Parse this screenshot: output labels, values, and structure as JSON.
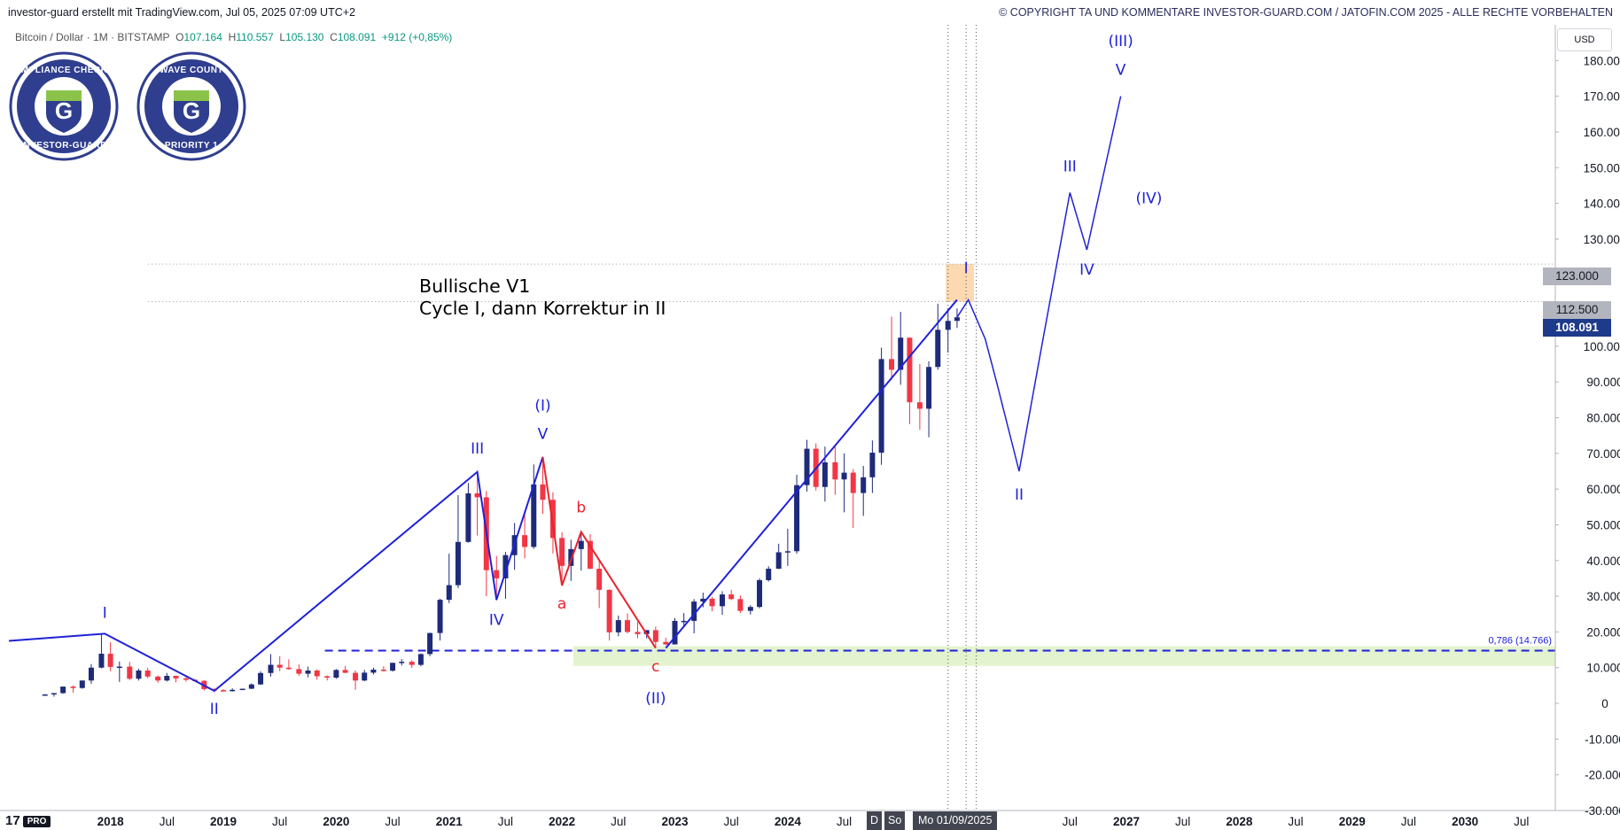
{
  "header": {
    "left": "investor-guard erstellt mit TradingView.com, Jul 05, 2025 07:09 UTC+2",
    "right": "© COPYRIGHT TA UND KOMMENTARE INVESTOR-GUARD.COM / JATOFIN.COM 2025 - ALLE RECHTE VORBEHALTEN"
  },
  "symbol": {
    "name": "Bitcoin / Dollar · 1M · BITSTAMP",
    "open_label": "O",
    "open": "107.164",
    "high_label": "H",
    "high": "110.557",
    "low_label": "L",
    "low": "105.130",
    "close_label": "C",
    "close": "108.091",
    "change": "+912 (+0,85%)"
  },
  "badges": {
    "left": {
      "top_text": "COMPLIANCE CHECKED",
      "bottom_text": "INVESTOR-GUARD",
      "letter": "G"
    },
    "right": {
      "top_text": "WAVE COUNT",
      "bottom_text": "PRIORITY 1",
      "letter": "G"
    }
  },
  "annotation": {
    "line1": "Bullische V1",
    "line2": "Cycle I, dann Korrektur in II"
  },
  "currency_button": "USD",
  "price_labels": {
    "level_123": "123.000",
    "level_1125": "112.500",
    "last": "108.091"
  },
  "fib_label": "0,786 (14.766)",
  "highlighted_date": "Mo 01/09/2025",
  "date_stub_1": "D",
  "date_stub_2": "So",
  "logo": {
    "mark": "17",
    "badge": "PRO"
  },
  "colors": {
    "up": "#1e2b7a",
    "down": "#f23645",
    "wave_blue": "#1f22d8",
    "wave_red": "#e8232f",
    "support_zone": "#e3f3cf",
    "target_box": "#fcd9b0",
    "last_price_bg": "#1e3a8a"
  },
  "chart_data": {
    "type": "candlestick",
    "ylim": [
      -30000,
      190000
    ],
    "xlim": [
      2017.1,
      2030.8
    ],
    "y_ticks": [
      {
        "v": 180000,
        "t": "180.000"
      },
      {
        "v": 170000,
        "t": "170.000"
      },
      {
        "v": 160000,
        "t": "160.000"
      },
      {
        "v": 150000,
        "t": "150.000"
      },
      {
        "v": 140000,
        "t": "140.000"
      },
      {
        "v": 130000,
        "t": "130.000"
      },
      {
        "v": 100000,
        "t": "100.000"
      },
      {
        "v": 90000,
        "t": "90.000"
      },
      {
        "v": 80000,
        "t": "80.000"
      },
      {
        "v": 70000,
        "t": "70.000"
      },
      {
        "v": 60000,
        "t": "60.000"
      },
      {
        "v": 50000,
        "t": "50.000"
      },
      {
        "v": 40000,
        "t": "40.000"
      },
      {
        "v": 30000,
        "t": "30.000"
      },
      {
        "v": 20000,
        "t": "20.000"
      },
      {
        "v": 10000,
        "t": "10.000"
      },
      {
        "v": 0,
        "t": "0"
      },
      {
        "v": -10000,
        "t": "-10.000"
      },
      {
        "v": -20000,
        "t": "-20.000"
      },
      {
        "v": -30000,
        "t": "-30.000"
      }
    ],
    "x_ticks": [
      {
        "v": 2018.0,
        "t": "2018"
      },
      {
        "v": 2018.5,
        "t": "Jul"
      },
      {
        "v": 2019.0,
        "t": "2019"
      },
      {
        "v": 2019.5,
        "t": "Jul"
      },
      {
        "v": 2020.0,
        "t": "2020"
      },
      {
        "v": 2020.5,
        "t": "Jul"
      },
      {
        "v": 2021.0,
        "t": "2021"
      },
      {
        "v": 2021.5,
        "t": "Jul"
      },
      {
        "v": 2022.0,
        "t": "2022"
      },
      {
        "v": 2022.5,
        "t": "Jul"
      },
      {
        "v": 2023.0,
        "t": "2023"
      },
      {
        "v": 2023.5,
        "t": "Jul"
      },
      {
        "v": 2024.0,
        "t": "2024"
      },
      {
        "v": 2024.5,
        "t": "Jul"
      },
      {
        "v": 2026.5,
        "t": "Jul"
      },
      {
        "v": 2027.0,
        "t": "2027"
      },
      {
        "v": 2027.5,
        "t": "Jul"
      },
      {
        "v": 2028.0,
        "t": "2028"
      },
      {
        "v": 2028.5,
        "t": "Jul"
      },
      {
        "v": 2029.0,
        "t": "2029"
      },
      {
        "v": 2029.5,
        "t": "Jul"
      },
      {
        "v": 2030.0,
        "t": "2030"
      },
      {
        "v": 2030.5,
        "t": "Jul"
      }
    ],
    "candles": [
      [
        2017.42,
        2400,
        2600,
        2200,
        2500
      ],
      [
        2017.5,
        2500,
        2900,
        1900,
        2870
      ],
      [
        2017.58,
        2870,
        4700,
        2700,
        4700
      ],
      [
        2017.67,
        4700,
        5000,
        3000,
        4300
      ],
      [
        2017.75,
        4300,
        6400,
        4100,
        6400
      ],
      [
        2017.83,
        6400,
        11000,
        5500,
        10000
      ],
      [
        2017.92,
        10000,
        19600,
        9800,
        13900
      ],
      [
        2018.0,
        13900,
        17100,
        9000,
        10200
      ],
      [
        2018.08,
        10200,
        11700,
        6000,
        10300
      ],
      [
        2018.17,
        10300,
        11600,
        6500,
        6900
      ],
      [
        2018.25,
        6900,
        9700,
        6400,
        9200
      ],
      [
        2018.33,
        9200,
        10000,
        7000,
        7500
      ],
      [
        2018.42,
        7500,
        7800,
        5800,
        6400
      ],
      [
        2018.5,
        6400,
        8500,
        6100,
        7700
      ],
      [
        2018.58,
        7700,
        7800,
        5900,
        7000
      ],
      [
        2018.67,
        7000,
        7400,
        6100,
        6600
      ],
      [
        2018.75,
        6600,
        6800,
        6100,
        6300
      ],
      [
        2018.83,
        6300,
        6500,
        3600,
        4000
      ],
      [
        2018.92,
        4000,
        4300,
        3100,
        3700
      ],
      [
        2019.0,
        3700,
        4000,
        3300,
        3400
      ],
      [
        2019.08,
        3400,
        4200,
        3300,
        3800
      ],
      [
        2019.17,
        3800,
        4100,
        3700,
        4100
      ],
      [
        2019.25,
        4100,
        5600,
        4000,
        5300
      ],
      [
        2019.33,
        5300,
        9000,
        5200,
        8500
      ],
      [
        2019.42,
        8500,
        13800,
        7500,
        10800
      ],
      [
        2019.5,
        10800,
        13200,
        9000,
        10000
      ],
      [
        2019.58,
        10000,
        12300,
        9400,
        9600
      ],
      [
        2019.67,
        9600,
        10900,
        7700,
        8300
      ],
      [
        2019.75,
        8300,
        10300,
        7300,
        9200
      ],
      [
        2019.83,
        9200,
        9500,
        6600,
        7600
      ],
      [
        2019.92,
        7600,
        7800,
        6400,
        7200
      ],
      [
        2020.0,
        7200,
        9600,
        6900,
        9350
      ],
      [
        2020.08,
        9350,
        10500,
        8500,
        8550
      ],
      [
        2020.17,
        8550,
        9200,
        3800,
        6400
      ],
      [
        2020.25,
        6400,
        9400,
        6200,
        8600
      ],
      [
        2020.33,
        8600,
        10000,
        8100,
        9450
      ],
      [
        2020.42,
        9450,
        10400,
        8900,
        9150
      ],
      [
        2020.5,
        9150,
        11400,
        8900,
        11350
      ],
      [
        2020.58,
        11350,
        12400,
        10600,
        11650
      ],
      [
        2020.67,
        11650,
        12100,
        9900,
        10780
      ],
      [
        2020.75,
        10780,
        14000,
        10400,
        13800
      ],
      [
        2020.83,
        13800,
        19800,
        13200,
        19700
      ],
      [
        2020.92,
        19700,
        29300,
        17600,
        29000
      ],
      [
        2021.0,
        29000,
        41900,
        28100,
        33100
      ],
      [
        2021.08,
        33100,
        58300,
        32300,
        45200
      ],
      [
        2021.17,
        45200,
        61700,
        45000,
        58800
      ],
      [
        2021.25,
        58800,
        64800,
        47000,
        57700
      ],
      [
        2021.33,
        57700,
        59500,
        30000,
        37300
      ],
      [
        2021.42,
        37300,
        41300,
        28800,
        35000
      ],
      [
        2021.5,
        35000,
        42400,
        29300,
        41500
      ],
      [
        2021.58,
        41500,
        50500,
        37400,
        47100
      ],
      [
        2021.67,
        47100,
        52900,
        40600,
        43800
      ],
      [
        2021.75,
        43800,
        66900,
        43300,
        61300
      ],
      [
        2021.83,
        61300,
        69000,
        53000,
        57000
      ],
      [
        2021.92,
        57000,
        59100,
        42000,
        46300
      ],
      [
        2022.0,
        46300,
        47900,
        33000,
        38500
      ],
      [
        2022.08,
        38500,
        45800,
        34300,
        43200
      ],
      [
        2022.17,
        43200,
        48200,
        37200,
        45500
      ],
      [
        2022.25,
        45500,
        47400,
        37600,
        37700
      ],
      [
        2022.33,
        37700,
        40000,
        26700,
        31800
      ],
      [
        2022.42,
        31800,
        31900,
        17600,
        19900
      ],
      [
        2022.5,
        19900,
        24600,
        18800,
        23300
      ],
      [
        2022.58,
        23300,
        25200,
        19600,
        20000
      ],
      [
        2022.67,
        20000,
        22800,
        18200,
        19400
      ],
      [
        2022.75,
        19400,
        20500,
        18200,
        20500
      ],
      [
        2022.83,
        20500,
        21500,
        15500,
        17200
      ],
      [
        2022.92,
        17200,
        18400,
        16300,
        16500
      ],
      [
        2023.0,
        16500,
        23900,
        16500,
        23100
      ],
      [
        2023.08,
        23100,
        25300,
        21400,
        23100
      ],
      [
        2023.17,
        23100,
        29200,
        19600,
        28500
      ],
      [
        2023.25,
        28500,
        31000,
        26900,
        29300
      ],
      [
        2023.33,
        29300,
        29800,
        25800,
        27200
      ],
      [
        2023.42,
        27200,
        31400,
        24800,
        30500
      ],
      [
        2023.5,
        30500,
        31800,
        28900,
        29200
      ],
      [
        2023.58,
        29200,
        30200,
        25300,
        25900
      ],
      [
        2023.67,
        25900,
        27500,
        24900,
        27000
      ],
      [
        2023.75,
        27000,
        35000,
        26600,
        34500
      ],
      [
        2023.83,
        34500,
        38400,
        34100,
        37700
      ],
      [
        2023.92,
        37700,
        44700,
        37600,
        42300
      ],
      [
        2024.0,
        42300,
        48900,
        38500,
        42600
      ],
      [
        2024.08,
        42600,
        64000,
        41900,
        61100
      ],
      [
        2024.17,
        61100,
        73800,
        59300,
        71300
      ],
      [
        2024.25,
        71300,
        72800,
        59600,
        60600
      ],
      [
        2024.33,
        60600,
        71900,
        56500,
        67500
      ],
      [
        2024.42,
        67500,
        72000,
        58400,
        62700
      ],
      [
        2024.5,
        62700,
        70000,
        53500,
        64600
      ],
      [
        2024.58,
        64600,
        65600,
        49100,
        58900
      ],
      [
        2024.67,
        58900,
        66500,
        52500,
        63300
      ],
      [
        2024.75,
        63300,
        73600,
        58900,
        70200
      ],
      [
        2024.83,
        70200,
        99600,
        66800,
        96400
      ],
      [
        2024.92,
        96400,
        108300,
        90500,
        93400
      ],
      [
        2025.0,
        93400,
        109600,
        89200,
        102400
      ],
      [
        2025.08,
        102400,
        102500,
        78200,
        84300
      ],
      [
        2025.17,
        84300,
        95000,
        76600,
        82500
      ],
      [
        2025.25,
        82500,
        95800,
        74500,
        94200
      ],
      [
        2025.33,
        94200,
        111900,
        93400,
        104600
      ],
      [
        2025.42,
        104600,
        110600,
        98200,
        107100
      ],
      [
        2025.5,
        107100,
        110600,
        105100,
        108100
      ]
    ],
    "projection": [
      [
        2025.5,
        108100
      ],
      [
        2025.6,
        113000
      ],
      [
        2025.75,
        102000
      ],
      [
        2025.85,
        90000
      ],
      [
        2026.05,
        65000
      ],
      [
        2026.25,
        100000
      ],
      [
        2026.5,
        143000
      ],
      [
        2026.65,
        127000
      ],
      [
        2026.95,
        170000
      ]
    ],
    "wave_lines_blue": [
      [
        [
          2017.1,
          17500
        ],
        [
          2017.95,
          19500
        ],
        [
          2018.92,
          3500
        ],
        [
          2021.25,
          64800
        ],
        [
          2021.42,
          29000
        ],
        [
          2021.83,
          69000
        ]
      ],
      [
        [
          2022.92,
          15500
        ],
        [
          2025.5,
          113000
        ]
      ]
    ],
    "wave_lines_red": [
      [
        [
          2021.83,
          69000
        ],
        [
          2022.0,
          33000
        ],
        [
          2022.17,
          48000
        ],
        [
          2022.83,
          15500
        ]
      ]
    ],
    "wave_labels": [
      {
        "t": "I",
        "x": 2017.95,
        "y": 24000,
        "c": "blue"
      },
      {
        "t": "II",
        "x": 2018.92,
        "y": -3000,
        "c": "blue"
      },
      {
        "t": "III",
        "x": 2021.25,
        "y": 70000,
        "c": "blue"
      },
      {
        "t": "IV",
        "x": 2021.42,
        "y": 22000,
        "c": "blue"
      },
      {
        "t": "V",
        "x": 2021.83,
        "y": 74000,
        "c": "blue"
      },
      {
        "t": "(I)",
        "x": 2021.83,
        "y": 82000,
        "c": "blue"
      },
      {
        "t": "a",
        "x": 2022.0,
        "y": 26500,
        "c": "red"
      },
      {
        "t": "b",
        "x": 2022.17,
        "y": 53500,
        "c": "red"
      },
      {
        "t": "c",
        "x": 2022.83,
        "y": 9000,
        "c": "red"
      },
      {
        "t": "(II)",
        "x": 2022.83,
        "y": 0,
        "c": "blue"
      },
      {
        "t": "I",
        "x": 2025.58,
        "y": 120500,
        "c": "blue"
      },
      {
        "t": "II",
        "x": 2026.05,
        "y": 57000,
        "c": "blue"
      },
      {
        "t": "III",
        "x": 2026.5,
        "y": 149000,
        "c": "blue"
      },
      {
        "t": "IV",
        "x": 2026.65,
        "y": 120000,
        "c": "blue"
      },
      {
        "t": "(IV)",
        "x": 2027.2,
        "y": 140000,
        "c": "blue"
      },
      {
        "t": "V",
        "x": 2026.95,
        "y": 176000,
        "c": "blue"
      },
      {
        "t": "(III)",
        "x": 2026.95,
        "y": 184000,
        "c": "blue"
      }
    ],
    "fib_level": 14766,
    "support_zone": {
      "x_from": 2022.1,
      "y_from": 10500,
      "y_to": 16000
    },
    "target_box": {
      "x_from": 2025.4,
      "x_to": 2025.65,
      "y_from": 112500,
      "y_to": 123000
    },
    "h_levels": [
      112500,
      123000
    ],
    "v_lines": [
      2025.42,
      2025.58,
      2025.67
    ]
  }
}
